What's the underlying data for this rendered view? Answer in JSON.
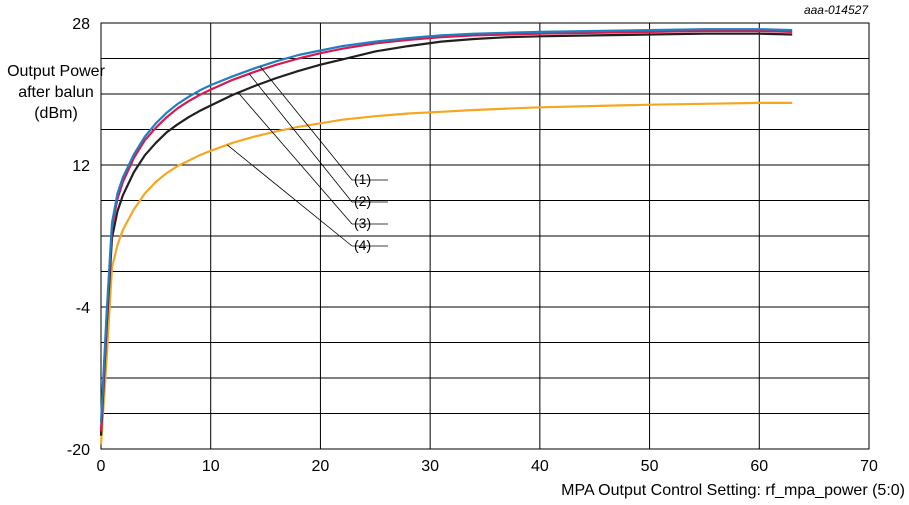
{
  "figure_id": "aaa-014527",
  "chart_data": {
    "type": "line",
    "xlabel": "MPA Output Control Setting: rf_mpa_power (5:0)",
    "ylabel_lines": [
      "Output Power",
      "after balun",
      "(dBm)"
    ],
    "xlim": [
      0,
      70
    ],
    "ylim": [
      -20,
      28
    ],
    "x_ticks": [
      0,
      10,
      20,
      30,
      40,
      50,
      60,
      70
    ],
    "y_ticks": [
      -20,
      -4,
      12,
      28
    ],
    "y_gridlines": [
      -20,
      -16,
      -12,
      -8,
      -4,
      0,
      4,
      8,
      12,
      16,
      20,
      24,
      28
    ],
    "grid": true,
    "x": [
      0,
      0.5,
      1,
      1.5,
      2,
      3,
      4,
      5,
      6,
      7,
      8,
      9,
      10,
      12,
      14,
      16,
      18,
      20,
      22,
      25,
      28,
      31,
      34,
      37,
      40,
      45,
      50,
      55,
      60,
      63
    ],
    "series": [
      {
        "name": "(1)",
        "color": "#1f7fc0",
        "values": [
          -17.0,
          -5.0,
          5.5,
          8.8,
          10.6,
          13.2,
          15.2,
          16.7,
          17.9,
          18.9,
          19.7,
          20.4,
          21.0,
          22.0,
          22.9,
          23.7,
          24.4,
          24.9,
          25.4,
          25.9,
          26.3,
          26.6,
          26.8,
          26.9,
          27.0,
          27.1,
          27.2,
          27.3,
          27.3,
          27.2
        ]
      },
      {
        "name": "(2)",
        "color": "#d8194f",
        "values": [
          -18.0,
          -5.5,
          5.0,
          8.2,
          10.1,
          12.8,
          14.8,
          16.2,
          17.4,
          18.4,
          19.2,
          19.9,
          20.5,
          21.6,
          22.5,
          23.3,
          24.0,
          24.6,
          25.1,
          25.7,
          26.1,
          26.4,
          26.6,
          26.7,
          26.8,
          26.9,
          27.0,
          27.1,
          27.1,
          27.0
        ]
      },
      {
        "name": "(3)",
        "color": "#231f20",
        "values": [
          -18.5,
          -6.5,
          3.8,
          6.8,
          8.6,
          11.2,
          13.1,
          14.5,
          15.7,
          16.6,
          17.4,
          18.1,
          18.7,
          19.9,
          20.9,
          21.8,
          22.6,
          23.3,
          23.9,
          24.8,
          25.4,
          25.9,
          26.2,
          26.4,
          26.5,
          26.6,
          26.7,
          26.8,
          26.8,
          26.7
        ]
      },
      {
        "name": "(4)",
        "color": "#f5a623",
        "values": [
          -19.5,
          -10.0,
          0.5,
          3.0,
          4.7,
          7.0,
          8.8,
          10.1,
          11.1,
          11.9,
          12.5,
          13.1,
          13.6,
          14.5,
          15.2,
          15.8,
          16.3,
          16.7,
          17.1,
          17.5,
          17.8,
          18.0,
          18.2,
          18.35,
          18.5,
          18.65,
          18.8,
          18.9,
          19.0,
          19.0
        ]
      }
    ]
  }
}
